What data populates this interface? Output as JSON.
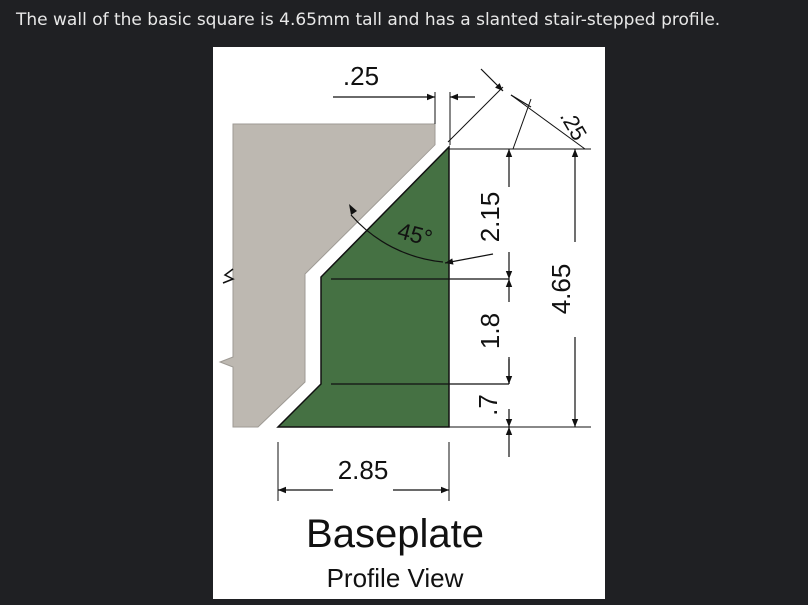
{
  "caption": "The wall of the basic square is 4.65mm tall and has a slanted stair-stepped profile.",
  "diagram": {
    "title": "Baseplate",
    "subtitle": "Profile View",
    "dimensions": {
      "top_offset": ".25",
      "diagonal_offset": ".25",
      "angle": "45°",
      "upper_height": "2.15",
      "middle_height": "1.8",
      "lower_height": ".7",
      "total_height": "4.65",
      "base_width": "2.85"
    },
    "colors": {
      "wall": "#bdb8b1",
      "profile": "#457143",
      "outline": "#111111",
      "background": "#ffffff"
    }
  }
}
